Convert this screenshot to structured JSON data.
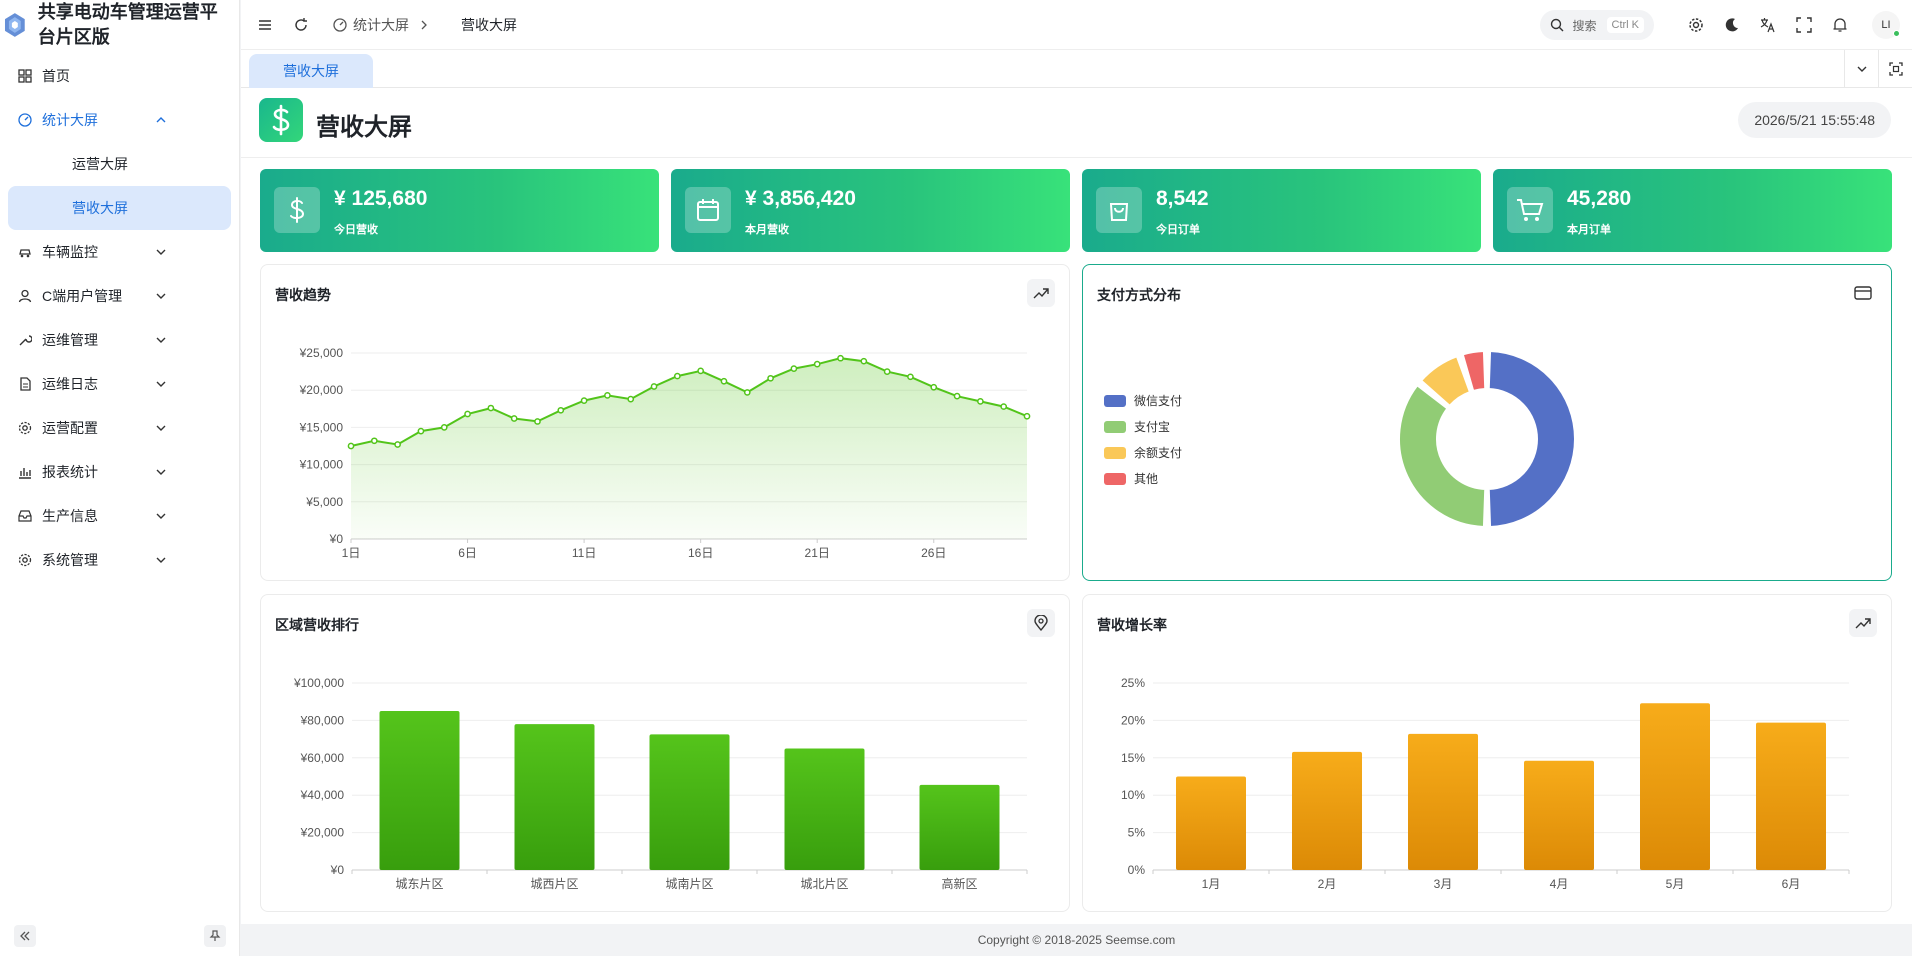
{
  "brand": {
    "title": "共享电动车管理运营平台片区版"
  },
  "sidebar": {
    "items": [
      {
        "label": "首页",
        "icon": "home-grid-icon",
        "has_children": false
      },
      {
        "label": "统计大屏",
        "icon": "dashboard-icon",
        "has_children": true,
        "expanded": true,
        "children": [
          {
            "label": "运营大屏",
            "active": false
          },
          {
            "label": "营收大屏",
            "active": true
          }
        ]
      },
      {
        "label": "车辆监控",
        "icon": "car-icon",
        "has_children": true
      },
      {
        "label": "C端用户管理",
        "icon": "user-icon",
        "has_children": true
      },
      {
        "label": "运维管理",
        "icon": "wrench-icon",
        "has_children": true
      },
      {
        "label": "运维日志",
        "icon": "document-icon",
        "has_children": true
      },
      {
        "label": "运营配置",
        "icon": "gear-icon",
        "has_children": true
      },
      {
        "label": "报表统计",
        "icon": "bar-chart-icon",
        "has_children": true
      },
      {
        "label": "生产信息",
        "icon": "inbox-icon",
        "has_children": true
      },
      {
        "label": "系统管理",
        "icon": "gear-icon",
        "has_children": true
      }
    ]
  },
  "topbar": {
    "breadcrumb": [
      "统计大屏",
      "营收大屏"
    ],
    "search": {
      "label": "搜索",
      "shortcut": "Ctrl K"
    },
    "avatar": "LI"
  },
  "tabs": [
    {
      "label": "营收大屏",
      "active": true
    }
  ],
  "page": {
    "title": "营收大屏",
    "datetime": "2026/5/21 15:55:48"
  },
  "stats": [
    {
      "value": "¥ 125,680",
      "label": "今日营收",
      "icon": "dollar-icon"
    },
    {
      "value": "¥ 3,856,420",
      "label": "本月营收",
      "icon": "calendar-icon"
    },
    {
      "value": "8,542",
      "label": "今日订单",
      "icon": "shopping-bag-icon"
    },
    {
      "value": "45,280",
      "label": "本月订单",
      "icon": "cart-icon"
    }
  ],
  "cards": {
    "trend": {
      "title": "营收趋势"
    },
    "payment": {
      "title": "支付方式分布"
    },
    "region": {
      "title": "区域营收排行"
    },
    "growth": {
      "title": "营收增长率"
    }
  },
  "chart_data": [
    {
      "type": "area",
      "title": "营收趋势",
      "x": [
        1,
        2,
        3,
        4,
        5,
        6,
        7,
        8,
        9,
        10,
        11,
        12,
        13,
        14,
        15,
        16,
        17,
        18,
        19,
        20,
        21,
        22,
        23,
        24,
        25,
        26,
        27,
        28,
        29,
        30
      ],
      "x_tick_labels": [
        "1日",
        "6日",
        "11日",
        "16日",
        "21日",
        "26日"
      ],
      "x_tick_positions": [
        1,
        6,
        11,
        16,
        21,
        26
      ],
      "values": [
        12500,
        13200,
        12700,
        14500,
        15000,
        16800,
        17600,
        16200,
        15800,
        17300,
        18600,
        19300,
        18800,
        20500,
        21900,
        22600,
        21200,
        19700,
        21600,
        22900,
        23500,
        24300,
        23900,
        22500,
        21800,
        20400,
        19200,
        18500,
        17800,
        16500
      ],
      "ylim": [
        0,
        25000
      ],
      "y_ticks": [
        0,
        5000,
        10000,
        15000,
        20000,
        25000
      ],
      "y_tick_labels": [
        "¥0",
        "¥5,000",
        "¥10,000",
        "¥15,000",
        "¥20,000",
        "¥25,000"
      ],
      "color": "#52c41a",
      "grid": true
    },
    {
      "type": "pie",
      "title": "支付方式分布",
      "donut": true,
      "labels": [
        "微信支付",
        "支付宝",
        "余额支付",
        "其他"
      ],
      "values": [
        50,
        36,
        9,
        5
      ],
      "colors": [
        "#5470c6",
        "#91cc75",
        "#fac858",
        "#ee6666"
      ],
      "legend_position": "left"
    },
    {
      "type": "bar",
      "title": "区域营收排行",
      "categories": [
        "城东片区",
        "城西片区",
        "城南片区",
        "城北片区",
        "高新区"
      ],
      "values": [
        85000,
        78000,
        72500,
        65000,
        45500
      ],
      "ylim": [
        0,
        100000
      ],
      "y_ticks": [
        0,
        20000,
        40000,
        60000,
        80000,
        100000
      ],
      "y_tick_labels": [
        "¥0",
        "¥20,000",
        "¥40,000",
        "¥60,000",
        "¥80,000",
        "¥100,000"
      ],
      "color": "#52c41a",
      "grid": true
    },
    {
      "type": "bar",
      "title": "营收增长率",
      "categories": [
        "1月",
        "2月",
        "3月",
        "4月",
        "5月",
        "6月"
      ],
      "values": [
        12.5,
        15.8,
        18.2,
        14.6,
        22.3,
        19.7
      ],
      "ylim": [
        0,
        25
      ],
      "y_ticks": [
        0,
        5,
        10,
        15,
        20,
        25
      ],
      "y_tick_labels": [
        "0%",
        "5%",
        "10%",
        "15%",
        "20%",
        "25%"
      ],
      "color": "#f5a316",
      "grid": true
    }
  ],
  "footer": {
    "copyright": "Copyright © 2018-2025 Seemse.com"
  },
  "colors": {
    "accent": "#1e6fdb",
    "stat_gradient_start": "#1aab8c",
    "stat_gradient_end": "#38e27a"
  }
}
